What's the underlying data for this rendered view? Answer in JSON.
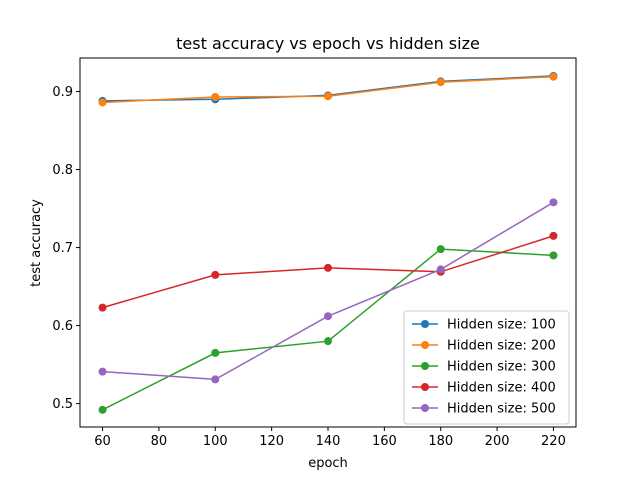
{
  "chart_data": {
    "type": "line",
    "title": "test accuracy vs epoch vs hidden size",
    "xlabel": "epoch",
    "ylabel": "test accuracy",
    "x": [
      60,
      100,
      140,
      180,
      220
    ],
    "xticks": [
      60,
      80,
      100,
      120,
      140,
      160,
      180,
      200,
      220
    ],
    "yticks": [
      0.5,
      0.6,
      0.7,
      0.8,
      0.9
    ],
    "xlim": [
      52,
      228
    ],
    "ylim": [
      0.47,
      0.943
    ],
    "grid": false,
    "legend_position": "lower-right",
    "series": [
      {
        "name": "Hidden size: 100",
        "color": "#1f77b4",
        "values": [
          0.888,
          0.89,
          0.895,
          0.913,
          0.92
        ]
      },
      {
        "name": "Hidden size: 200",
        "color": "#ff7f0e",
        "values": [
          0.886,
          0.893,
          0.894,
          0.912,
          0.919
        ]
      },
      {
        "name": "Hidden size: 300",
        "color": "#2ca02c",
        "values": [
          0.492,
          0.565,
          0.58,
          0.698,
          0.69
        ]
      },
      {
        "name": "Hidden size: 400",
        "color": "#d62728",
        "values": [
          0.623,
          0.665,
          0.674,
          0.669,
          0.715
        ]
      },
      {
        "name": "Hidden size: 500",
        "color": "#9467bd",
        "values": [
          0.541,
          0.531,
          0.612,
          0.672,
          0.758
        ]
      }
    ]
  }
}
